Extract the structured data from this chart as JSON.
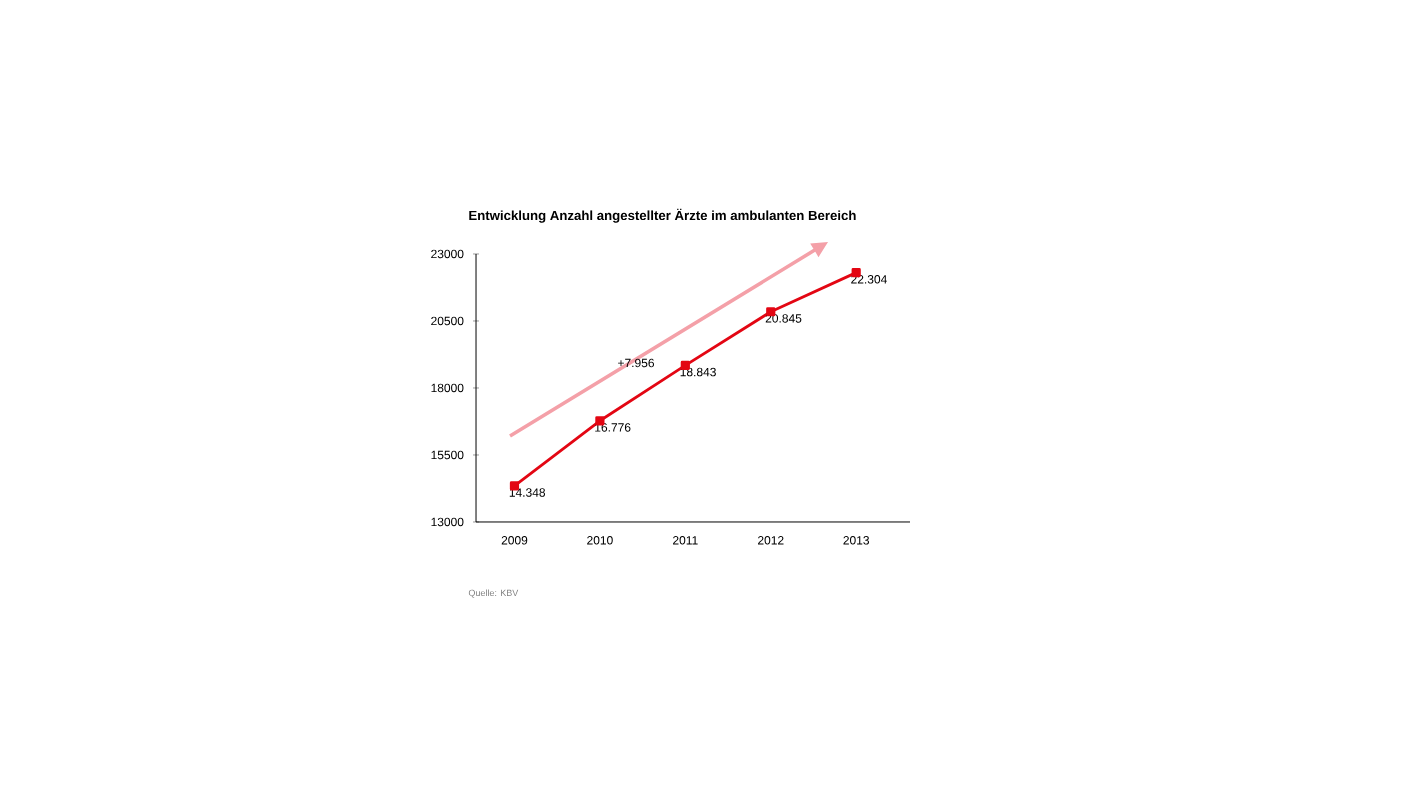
{
  "chart_data": {
    "type": "line",
    "title": "Entwicklung Anzahl angestellter Ärzte im ambulanten Bereich",
    "categories": [
      "2009",
      "2010",
      "2011",
      "2012",
      "2013"
    ],
    "values": [
      14348,
      16776,
      18843,
      20845,
      22304
    ],
    "value_labels": [
      "14.348",
      "16.776",
      "18.843",
      "20.845",
      "22.304"
    ],
    "color": "#e30613",
    "marker": "square",
    "line_style": "solid",
    "ylim": [
      13000,
      23000
    ],
    "yticks": [
      13000,
      15500,
      18000,
      20500,
      23000
    ],
    "annotations": [
      "+7.956",
      "Quelle: KBV"
    ]
  }
}
